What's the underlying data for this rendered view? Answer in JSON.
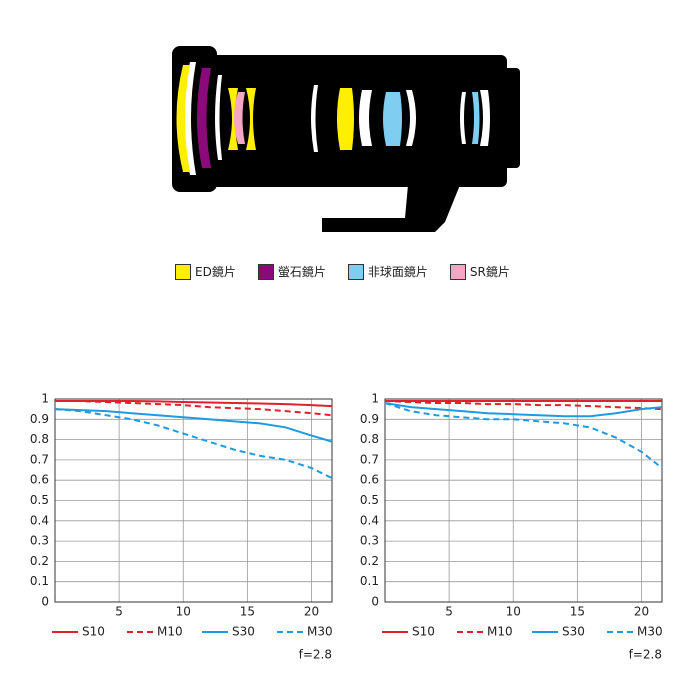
{
  "lens_legend": [
    {
      "label": "ED鏡片",
      "color": "#ffef00"
    },
    {
      "label": "螢石鏡片",
      "color": "#8b0a7a"
    },
    {
      "label": "非球面鏡片",
      "color": "#7fcdf0"
    },
    {
      "label": "SR鏡片",
      "color": "#f4a6c3"
    }
  ],
  "chart_data": [
    {
      "type": "line",
      "note": "f=2.8",
      "x": [
        0,
        2,
        4,
        6,
        8,
        10,
        12,
        14,
        16,
        18,
        20,
        21.6
      ],
      "xlim": [
        0,
        21.6
      ],
      "xticks": [
        5,
        10,
        15,
        20
      ],
      "ylim": [
        0,
        1
      ],
      "yticks": [
        0,
        0.1,
        0.2,
        0.3,
        0.4,
        0.5,
        0.6,
        0.7,
        0.8,
        0.9,
        1
      ],
      "grid": true,
      "series": [
        {
          "name": "S10",
          "color": "#e0202a",
          "dashed": false,
          "values": [
            0.99,
            0.99,
            0.99,
            0.99,
            0.988,
            0.985,
            0.983,
            0.98,
            0.978,
            0.975,
            0.97,
            0.965
          ]
        },
        {
          "name": "M10",
          "color": "#e0202a",
          "dashed": true,
          "values": [
            0.99,
            0.99,
            0.985,
            0.98,
            0.975,
            0.97,
            0.96,
            0.955,
            0.95,
            0.94,
            0.93,
            0.92
          ]
        },
        {
          "name": "S30",
          "color": "#1e9be0",
          "dashed": false,
          "values": [
            0.95,
            0.945,
            0.94,
            0.93,
            0.92,
            0.91,
            0.9,
            0.89,
            0.88,
            0.86,
            0.82,
            0.79
          ]
        },
        {
          "name": "M30",
          "color": "#1e9be0",
          "dashed": true,
          "values": [
            0.95,
            0.94,
            0.92,
            0.9,
            0.87,
            0.83,
            0.79,
            0.75,
            0.72,
            0.7,
            0.66,
            0.61
          ]
        }
      ]
    },
    {
      "type": "line",
      "note": "f=2.8",
      "x": [
        0,
        2,
        4,
        6,
        8,
        10,
        12,
        14,
        16,
        18,
        20,
        21.6
      ],
      "xlim": [
        0,
        21.6
      ],
      "xticks": [
        5,
        10,
        15,
        20
      ],
      "ylim": [
        0,
        1
      ],
      "yticks": [
        0,
        0.1,
        0.2,
        0.3,
        0.4,
        0.5,
        0.6,
        0.7,
        0.8,
        0.9,
        1
      ],
      "grid": true,
      "series": [
        {
          "name": "S10",
          "color": "#e0202a",
          "dashed": false,
          "values": [
            0.99,
            0.99,
            0.99,
            0.99,
            0.99,
            0.99,
            0.99,
            0.99,
            0.99,
            0.99,
            0.99,
            0.99
          ]
        },
        {
          "name": "M10",
          "color": "#e0202a",
          "dashed": true,
          "values": [
            0.99,
            0.985,
            0.98,
            0.98,
            0.975,
            0.975,
            0.97,
            0.97,
            0.965,
            0.96,
            0.955,
            0.95
          ]
        },
        {
          "name": "S30",
          "color": "#1e9be0",
          "dashed": false,
          "values": [
            0.98,
            0.96,
            0.95,
            0.94,
            0.93,
            0.925,
            0.92,
            0.915,
            0.915,
            0.93,
            0.95,
            0.96
          ]
        },
        {
          "name": "M30",
          "color": "#1e9be0",
          "dashed": true,
          "values": [
            0.98,
            0.94,
            0.92,
            0.91,
            0.9,
            0.9,
            0.89,
            0.88,
            0.86,
            0.81,
            0.74,
            0.66
          ]
        }
      ]
    }
  ]
}
